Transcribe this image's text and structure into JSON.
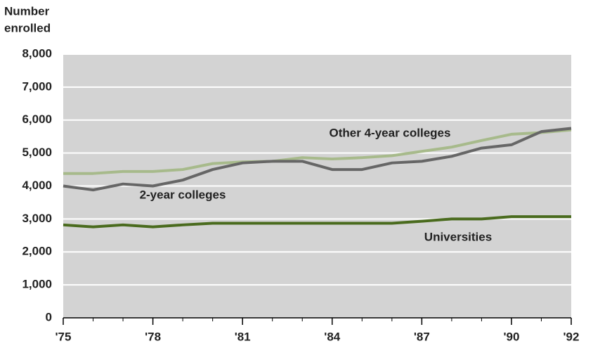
{
  "chart_data": {
    "type": "line",
    "y_label_lines": [
      "Number",
      "enrolled"
    ],
    "x": [
      1975,
      1976,
      1977,
      1978,
      1979,
      1980,
      1981,
      1982,
      1983,
      1984,
      1985,
      1986,
      1987,
      1988,
      1989,
      1990,
      1991,
      1992
    ],
    "xlim": [
      1975,
      1992
    ],
    "xticks": [
      {
        "value": 1975,
        "label": "'75"
      },
      {
        "value": 1978,
        "label": "'78"
      },
      {
        "value": 1981,
        "label": "'81"
      },
      {
        "value": 1984,
        "label": "'84"
      },
      {
        "value": 1987,
        "label": "'87"
      },
      {
        "value": 1990,
        "label": "'90"
      },
      {
        "value": 1992,
        "label": "'92"
      }
    ],
    "ylim": [
      0,
      8000
    ],
    "yticks": [
      0,
      {
        "value": 1000,
        "label": "1,000"
      },
      {
        "value": 2000,
        "label": "2,000"
      },
      {
        "value": 3000,
        "label": "3,000"
      },
      {
        "value": 4000,
        "label": "4,000"
      },
      {
        "value": 5000,
        "label": "5,000"
      },
      {
        "value": 6000,
        "label": "6,000"
      },
      {
        "value": 7000,
        "label": "7,000"
      },
      {
        "value": 8000,
        "label": "8,000"
      }
    ],
    "grid": true,
    "series": [
      {
        "name": "Other 4-year colleges",
        "color": "#a7ba8b",
        "values": [
          4380,
          4380,
          4440,
          4440,
          4500,
          4680,
          4730,
          4750,
          4860,
          4820,
          4860,
          4920,
          5050,
          5180,
          5380,
          5570,
          5620,
          5700
        ]
      },
      {
        "name": "2-year colleges",
        "color": "#666666",
        "values": [
          4000,
          3880,
          4060,
          4000,
          4180,
          4500,
          4700,
          4750,
          4750,
          4500,
          4500,
          4700,
          4750,
          4900,
          5150,
          5250,
          5650,
          5750
        ]
      },
      {
        "name": "Universities",
        "color": "#4a6b1e",
        "values": [
          2820,
          2760,
          2820,
          2760,
          2820,
          2870,
          2870,
          2870,
          2870,
          2870,
          2870,
          2870,
          2930,
          3000,
          3000,
          3070,
          3070,
          3070
        ]
      }
    ]
  }
}
